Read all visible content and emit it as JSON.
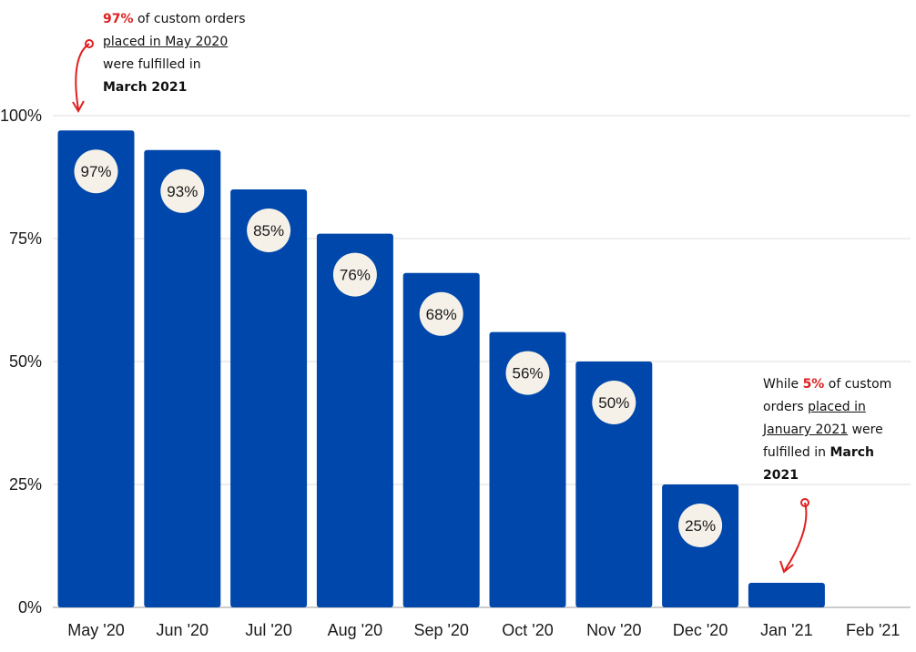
{
  "chart_data": {
    "type": "bar",
    "categories": [
      "May '20",
      "Jun '20",
      "Jul '20",
      "Aug '20",
      "Sep '20",
      "Oct '20",
      "Nov '20",
      "Dec '20",
      "Jan '21",
      "Feb '21"
    ],
    "values": [
      97,
      93,
      85,
      76,
      68,
      56,
      50,
      25,
      5,
      0
    ],
    "data_labels": [
      "97%",
      "93%",
      "85%",
      "76%",
      "68%",
      "56%",
      "50%",
      "25%",
      "",
      ""
    ],
    "y_ticks": [
      {
        "value": 0,
        "label": "0%"
      },
      {
        "value": 25,
        "label": "25%"
      },
      {
        "value": 50,
        "label": "50%"
      },
      {
        "value": 75,
        "label": "75%"
      },
      {
        "value": 100,
        "label": "100%"
      }
    ],
    "ylim": [
      0,
      100
    ],
    "grid": true,
    "title": "",
    "xlabel": "",
    "ylabel": ""
  },
  "colors": {
    "bar": "#0047ab",
    "label_bubble": "#f5f1e8",
    "grid": "#dddddd",
    "annotation_highlight": "#e02020",
    "arrow": "#e02020"
  },
  "annotations": {
    "top": {
      "pct": "97%",
      "text1": " of custom orders",
      "text2": "placed in May 2020",
      "text3": "were fulfilled in",
      "text4": "March 2021"
    },
    "bottom": {
      "text1": "While ",
      "pct": "5%",
      "text2": " of custom",
      "text3": "orders ",
      "text4": "placed in",
      "text5": "January 2021",
      "text6": " were",
      "text7": "fulfilled in ",
      "text8": "March",
      "text9": "2021"
    }
  }
}
